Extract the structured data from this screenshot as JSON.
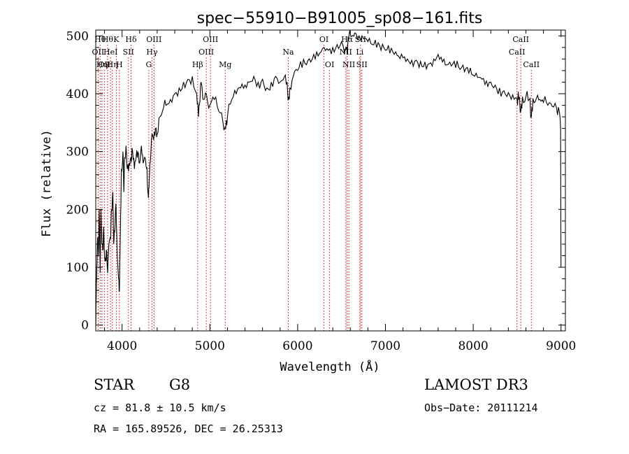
{
  "chart_data": {
    "type": "line",
    "title": "spec−55910−B91005_sp08−161.fits",
    "xlabel": "Wavelength (Å)",
    "ylabel": "Flux (relative)",
    "xlim": [
      3700,
      9050
    ],
    "ylim": [
      -10,
      510
    ],
    "x_ticks": [
      4000,
      5000,
      6000,
      7000,
      8000,
      9000
    ],
    "y_ticks": [
      0,
      100,
      200,
      300,
      400,
      500
    ],
    "spectrum_points": [
      [
        3700,
        0
      ],
      [
        3705,
        40
      ],
      [
        3712,
        100
      ],
      [
        3720,
        150
      ],
      [
        3730,
        120
      ],
      [
        3740,
        200
      ],
      [
        3750,
        90
      ],
      [
        3760,
        200
      ],
      [
        3770,
        140
      ],
      [
        3780,
        130
      ],
      [
        3790,
        170
      ],
      [
        3800,
        120
      ],
      [
        3810,
        110
      ],
      [
        3820,
        130
      ],
      [
        3835,
        90
      ],
      [
        3850,
        140
      ],
      [
        3870,
        150
      ],
      [
        3880,
        200
      ],
      [
        3895,
        230
      ],
      [
        3905,
        140
      ],
      [
        3915,
        160
      ],
      [
        3930,
        210
      ],
      [
        3945,
        120
      ],
      [
        3960,
        80
      ],
      [
        3970,
        60
      ],
      [
        3980,
        160
      ],
      [
        3990,
        250
      ],
      [
        4000,
        270
      ],
      [
        4010,
        300
      ],
      [
        4020,
        230
      ],
      [
        4030,
        290
      ],
      [
        4045,
        310
      ],
      [
        4060,
        270
      ],
      [
        4080,
        280
      ],
      [
        4100,
        290
      ],
      [
        4120,
        300
      ],
      [
        4140,
        270
      ],
      [
        4160,
        290
      ],
      [
        4180,
        300
      ],
      [
        4200,
        280
      ],
      [
        4220,
        310
      ],
      [
        4240,
        280
      ],
      [
        4260,
        290
      ],
      [
        4280,
        270
      ],
      [
        4290,
        240
      ],
      [
        4300,
        220
      ],
      [
        4310,
        250
      ],
      [
        4320,
        280
      ],
      [
        4340,
        330
      ],
      [
        4360,
        320
      ],
      [
        4380,
        340
      ],
      [
        4400,
        330
      ],
      [
        4430,
        360
      ],
      [
        4460,
        370
      ],
      [
        4500,
        380
      ],
      [
        4550,
        390
      ],
      [
        4600,
        400
      ],
      [
        4650,
        410
      ],
      [
        4700,
        420
      ],
      [
        4750,
        425
      ],
      [
        4800,
        430
      ],
      [
        4850,
        400
      ],
      [
        4870,
        360
      ],
      [
        4880,
        380
      ],
      [
        4900,
        420
      ],
      [
        4930,
        390
      ],
      [
        4960,
        400
      ],
      [
        5000,
        380
      ],
      [
        5050,
        390
      ],
      [
        5100,
        370
      ],
      [
        5150,
        350
      ],
      [
        5180,
        340
      ],
      [
        5200,
        360
      ],
      [
        5250,
        390
      ],
      [
        5300,
        400
      ],
      [
        5350,
        410
      ],
      [
        5400,
        415
      ],
      [
        5450,
        420
      ],
      [
        5500,
        430
      ],
      [
        5550,
        420
      ],
      [
        5600,
        425
      ],
      [
        5650,
        410
      ],
      [
        5700,
        420
      ],
      [
        5750,
        430
      ],
      [
        5800,
        420
      ],
      [
        5850,
        430
      ],
      [
        5880,
        420
      ],
      [
        5895,
        390
      ],
      [
        5910,
        410
      ],
      [
        5950,
        430
      ],
      [
        6000,
        440
      ],
      [
        6050,
        445
      ],
      [
        6100,
        450
      ],
      [
        6150,
        455
      ],
      [
        6200,
        460
      ],
      [
        6250,
        470
      ],
      [
        6300,
        480
      ],
      [
        6350,
        475
      ],
      [
        6400,
        480
      ],
      [
        6450,
        485
      ],
      [
        6500,
        490
      ],
      [
        6550,
        480
      ],
      [
        6563,
        470
      ],
      [
        6580,
        495
      ],
      [
        6620,
        500
      ],
      [
        6650,
        505
      ],
      [
        6700,
        500
      ],
      [
        6750,
        495
      ],
      [
        6800,
        490
      ],
      [
        6850,
        485
      ],
      [
        6900,
        480
      ],
      [
        6950,
        475
      ],
      [
        7000,
        475
      ],
      [
        7050,
        470
      ],
      [
        7100,
        468
      ],
      [
        7150,
        465
      ],
      [
        7200,
        462
      ],
      [
        7250,
        460
      ],
      [
        7300,
        458
      ],
      [
        7350,
        458
      ],
      [
        7400,
        456
      ],
      [
        7450,
        455
      ],
      [
        7500,
        452
      ],
      [
        7550,
        460
      ],
      [
        7600,
        468
      ],
      [
        7650,
        455
      ],
      [
        7700,
        450
      ],
      [
        7750,
        448
      ],
      [
        7800,
        445
      ],
      [
        7850,
        442
      ],
      [
        7900,
        438
      ],
      [
        7950,
        435
      ],
      [
        8000,
        432
      ],
      [
        8050,
        428
      ],
      [
        8100,
        425
      ],
      [
        8150,
        422
      ],
      [
        8200,
        420
      ],
      [
        8250,
        415
      ],
      [
        8300,
        410
      ],
      [
        8350,
        405
      ],
      [
        8400,
        402
      ],
      [
        8450,
        398
      ],
      [
        8498,
        392
      ],
      [
        8520,
        390
      ],
      [
        8542,
        370
      ],
      [
        8560,
        395
      ],
      [
        8600,
        395
      ],
      [
        8640,
        390
      ],
      [
        8662,
        360
      ],
      [
        8680,
        392
      ],
      [
        8720,
        392
      ],
      [
        8760,
        390
      ],
      [
        8800,
        385
      ],
      [
        8850,
        380
      ],
      [
        8900,
        378
      ],
      [
        8950,
        375
      ],
      [
        8980,
        370
      ],
      [
        8995,
        340
      ],
      [
        9000,
        100
      ]
    ],
    "line_markers": [
      {
        "wavelength": 3727,
        "label": "OII",
        "row": 1
      },
      {
        "wavelength": 3750,
        "label": "Hθ",
        "row": 0
      },
      {
        "wavelength": 3771,
        "label": "Hη",
        "row": 2
      },
      {
        "wavelength": 3798,
        "label": "OII",
        "row": 2
      },
      {
        "wavelength": 3835,
        "label": "Hθ",
        "row": 0
      },
      {
        "wavelength": 3869,
        "label": "HeI",
        "row": 1
      },
      {
        "wavelength": 3889,
        "label": "Hη",
        "row": 2
      },
      {
        "wavelength": 3934,
        "label": "K",
        "row": 0
      },
      {
        "wavelength": 3969,
        "label": "H",
        "row": 2
      },
      {
        "wavelength": 4072,
        "label": "SII",
        "row": 1
      },
      {
        "wavelength": 4102,
        "label": "Hδ",
        "row": 0
      },
      {
        "wavelength": 4304,
        "label": "G",
        "row": 2
      },
      {
        "wavelength": 4341,
        "label": "Hγ",
        "row": 1
      },
      {
        "wavelength": 4363,
        "label": "OIII",
        "row": 0
      },
      {
        "wavelength": 4861,
        "label": "Hβ",
        "row": 2
      },
      {
        "wavelength": 4959,
        "label": "OIII",
        "row": 1
      },
      {
        "wavelength": 5007,
        "label": "OIII",
        "row": 0
      },
      {
        "wavelength": 5175,
        "label": "Mg",
        "row": 2
      },
      {
        "wavelength": 5893,
        "label": "Na",
        "row": 1
      },
      {
        "wavelength": 6300,
        "label": "OI",
        "row": 0
      },
      {
        "wavelength": 6364,
        "label": "OI",
        "row": 2
      },
      {
        "wavelength": 6548,
        "label": "NII",
        "row": 1
      },
      {
        "wavelength": 6563,
        "label": "Hα",
        "row": 0
      },
      {
        "wavelength": 6583,
        "label": "NII",
        "row": 2
      },
      {
        "wavelength": 6708,
        "label": "Li",
        "row": 1
      },
      {
        "wavelength": 6716,
        "label": "SII",
        "row": 0
      },
      {
        "wavelength": 6731,
        "label": "SII",
        "row": 2
      },
      {
        "wavelength": 8498,
        "label": "CaII",
        "row": 1
      },
      {
        "wavelength": 8542,
        "label": "CaII",
        "row": 0
      },
      {
        "wavelength": 8662,
        "label": "CaII",
        "row": 2
      }
    ]
  },
  "info": {
    "object_class": "STAR",
    "subclass": "G8",
    "survey": "LAMOST DR3",
    "redshift": "cz = 81.8 ± 10.5 km/s",
    "obs_date": "Obs−Date: 20111214",
    "coords": "RA = 165.89526, DEC =  26.25313"
  },
  "colors": {
    "axis": "#000000",
    "spectrum": "#000000",
    "marker": "#cc0000"
  }
}
